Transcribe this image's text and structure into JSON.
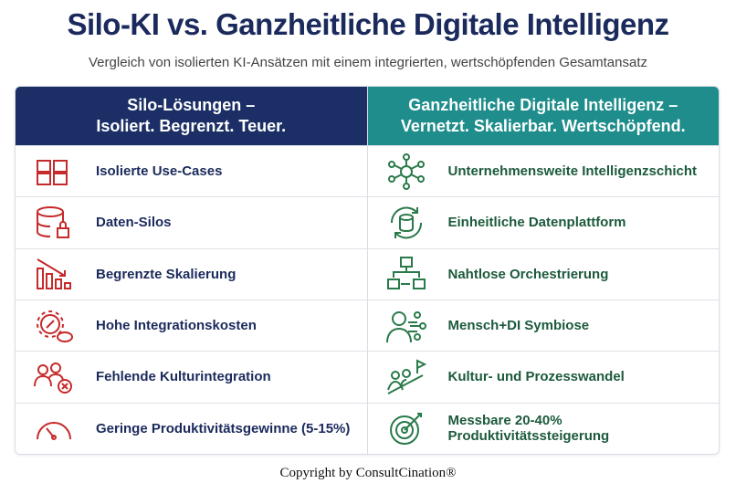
{
  "header": {
    "title": "Silo-KI vs. Ganzheitliche Digitale Intelligenz",
    "subtitle": "Vergleich von isolierten KI-Ansätzen mit einem integrierten, wertschöpfenden Gesamtansatz"
  },
  "table": {
    "columns": [
      {
        "heading": [
          "Silo-Lösungen –",
          "Isoliert. Begrenzt. Teuer."
        ],
        "rows": [
          "Isolierte Use-Cases",
          "Daten-Silos",
          "Begrenzte Skalierung",
          "Hohe Integrationskosten",
          "Fehlende Kulturintegration",
          "Geringe Produktivitätsgewinne (5-15%)"
        ]
      },
      {
        "heading": [
          "Ganzheitliche Digitale Intelligenz –",
          "Vernetzt. Skalierbar. Wertschöpfend."
        ],
        "rows": [
          "Unternehmensweite Intelligenzschicht",
          "Einheitliche Datenplattform",
          "Nahtlose Orchestrierung",
          "Mensch+DI Symbiose",
          "Kultur- und Prozesswandel",
          "Messbare 20-40% Produktivitätssteigerung"
        ]
      }
    ]
  },
  "footer": {
    "copyright": "Copyright by ConsultCination®"
  }
}
